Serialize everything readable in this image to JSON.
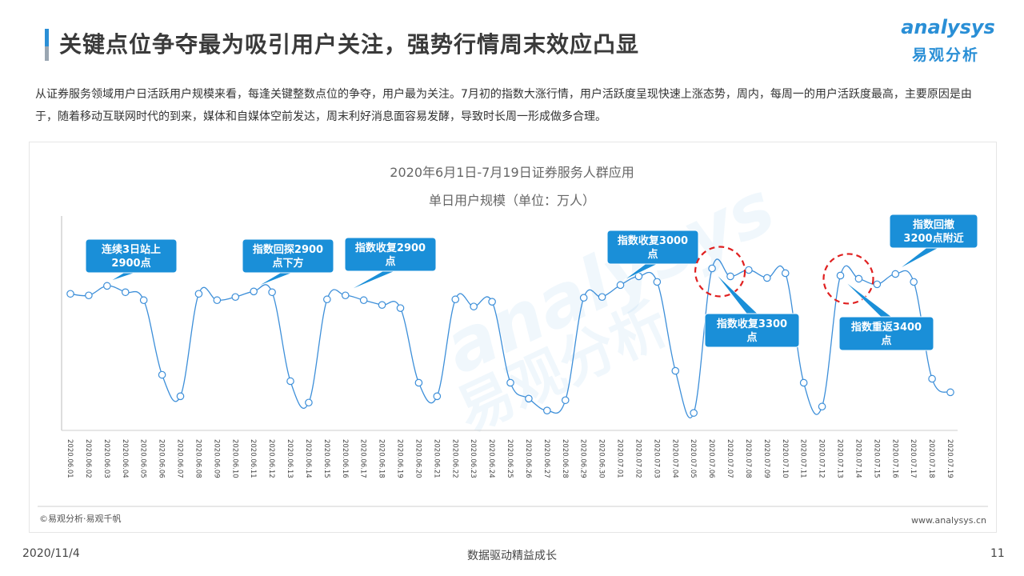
{
  "header": {
    "title": "关键点位争夺最为吸引用户关注，强势行情周末效应凸显",
    "logo_text": "analysys",
    "logo_cn": "易观分析"
  },
  "intro_text": "从证券服务领域用户日活跃用户规模来看，每逢关键整数点位的争夺，用户最为关注。7月初的指数大涨行情，用户活跃度呈现快速上涨态势，周内，每周一的用户活跃度最高，主要原因是由于，随着移动互联网时代的到来，媒体和自媒体空前发达，周末利好消息面容易发酵，导致时长周一形成做多合理。",
  "chart_footer": {
    "source": "©易观分析·易观千帆",
    "website": "www.analysys.cn"
  },
  "footer": {
    "date": "2020/11/4",
    "slogan": "数据驱动精益成长",
    "page": "11"
  },
  "colors": {
    "accent": "#2a8fd6",
    "line": "#3d8fd9",
    "callout": "#1a8fd8",
    "highlight_circle": "#e02020"
  },
  "chart_data": {
    "type": "line",
    "title": "2020年6月1日-7月19日证券服务人群应用",
    "subtitle": "单日用户规模（单位：万人）",
    "grid": false,
    "x": [
      "2020.06.01",
      "2020.06.02",
      "2020.06.03",
      "2020.06.04",
      "2020.06.05",
      "2020.06.06",
      "2020.06.07",
      "2020.06.08",
      "2020.06.09",
      "2020.06.10",
      "2020.06.11",
      "2020.06.12",
      "2020.06.13",
      "2020.06.14",
      "2020.06.15",
      "2020.06.16",
      "2020.06.17",
      "2020.06.18",
      "2020.06.19",
      "2020.06.20",
      "2020.06.21",
      "2020.06.22",
      "2020.06.23",
      "2020.06.24",
      "2020.06.25",
      "2020.06.26",
      "2020.06.27",
      "2020.06.28",
      "2020.06.29",
      "2020.06.30",
      "2020.07.01",
      "2020.07.02",
      "2020.07.03",
      "2020.07.04",
      "2020.07.05",
      "2020.07.06",
      "2020.07.07",
      "2020.07.08",
      "2020.07.09",
      "2020.07.10",
      "2020.07.11",
      "2020.07.12",
      "2020.07.13",
      "2020.07.14",
      "2020.07.15",
      "2020.07.16",
      "2020.07.17",
      "2020.07.18",
      "2020.07.19"
    ],
    "values": [
      368,
      370,
      358,
      366,
      376,
      470,
      497,
      368,
      376,
      372,
      365,
      366,
      478,
      505,
      375,
      370,
      376,
      382,
      386,
      480,
      497,
      375,
      384,
      378,
      480,
      500,
      515,
      502,
      373,
      372,
      357,
      346,
      353,
      465,
      518,
      336,
      346,
      338,
      348,
      342,
      480,
      510,
      345,
      349,
      356,
      343,
      353,
      475,
      492
    ],
    "ylim": [
      270,
      540
    ],
    "y_inverted_note": "",
    "annotations": [
      {
        "text": "连续3日站上\n2900点",
        "index": 2,
        "style": "callout"
      },
      {
        "text": "指数回探2900\n点下方",
        "index": 10,
        "style": "callout"
      },
      {
        "text": "指数收复2900\n点",
        "index": 15,
        "style": "callout"
      },
      {
        "text": "指数收复3000\n点",
        "index": 30,
        "style": "callout"
      },
      {
        "text": "指数收复3300\n点",
        "index": 35,
        "style": "callout-circle"
      },
      {
        "text": "指数重返3400\n点",
        "index": 42,
        "style": "callout-circle"
      },
      {
        "text": "指数回撤\n3200点附近",
        "index": 45,
        "style": "callout"
      }
    ]
  }
}
